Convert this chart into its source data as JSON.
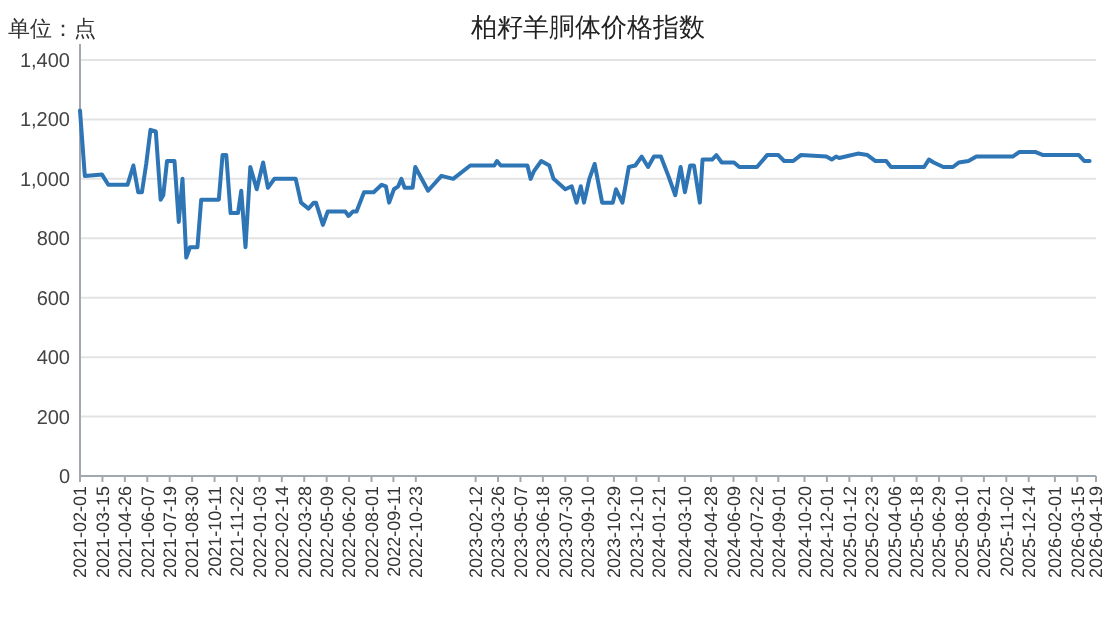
{
  "chart_data": {
    "type": "line",
    "title": "柏籽羊胴体价格指数",
    "ylabel": "单位：点",
    "xlim": [
      "2021-02-01",
      "2026-04-19"
    ],
    "xticks": [
      "2021-02-01",
      "2021-03-15",
      "2021-04-26",
      "2021-06-07",
      "2021-07-19",
      "2021-08-30",
      "2021-10-11",
      "2021-11-22",
      "2022-01-03",
      "2022-02-14",
      "2022-03-28",
      "2022-05-09",
      "2022-06-20",
      "2022-08-01",
      "2022-09-11",
      "2022-10-23",
      "2023-02-12",
      "2023-03-26",
      "2023-05-07",
      "2023-06-18",
      "2023-07-30",
      "2023-09-10",
      "2023-10-29",
      "2023-12-10",
      "2024-01-21",
      "2024-03-10",
      "2024-04-28",
      "2024-06-09",
      "2024-07-22",
      "2024-09-01",
      "2024-10-20",
      "2024-12-01",
      "2025-01-12",
      "2025-02-23",
      "2025-04-06",
      "2025-05-18",
      "2025-06-29",
      "2025-08-10",
      "2025-09-21",
      "2025-11-02",
      "2025-12-14",
      "2026-02-01",
      "2026-03-15",
      "2026-04-19"
    ],
    "ylim": [
      0,
      1400
    ],
    "yticks": [
      0,
      200,
      400,
      600,
      800,
      {
        "value": 1000,
        "label": "1,000"
      },
      {
        "value": 1200,
        "label": "1,200"
      },
      {
        "value": 1400,
        "label": "1,400"
      }
    ],
    "grid": "y",
    "series": [
      {
        "color": "#2e75b6",
        "x": [
          "2021-02-01",
          "2021-02-10",
          "2021-03-14",
          "2021-03-26",
          "2021-05-01",
          "2021-05-12",
          "2021-05-21",
          "2021-05-28",
          "2021-06-05",
          "2021-06-13",
          "2021-06-23",
          "2021-07-02",
          "2021-07-07",
          "2021-07-14",
          "2021-07-28",
          "2021-08-05",
          "2021-08-12",
          "2021-08-19",
          "2021-08-26",
          "2021-09-09",
          "2021-09-16",
          "2021-10-19",
          "2021-10-26",
          "2021-11-02",
          "2021-11-10",
          "2021-11-24",
          "2021-11-30",
          "2021-12-08",
          "2021-12-17",
          "2021-12-29",
          "2022-01-10",
          "2022-01-19",
          "2022-01-31",
          "2022-03-12",
          "2022-03-22",
          "2022-04-05",
          "2022-04-15",
          "2022-04-19",
          "2022-05-02",
          "2022-05-11",
          "2022-06-13",
          "2022-06-19",
          "2022-06-27",
          "2022-07-04",
          "2022-07-18",
          "2022-08-05",
          "2022-08-20",
          "2022-08-28",
          "2022-09-03",
          "2022-09-12",
          "2022-09-20",
          "2022-09-26",
          "2022-10-02",
          "2022-10-17",
          "2022-10-22",
          "2022-11-15",
          "2022-12-10",
          "2023-01-01",
          "2023-02-02",
          "2023-03-19",
          "2023-03-24",
          "2023-03-31",
          "2023-05-20",
          "2023-05-26",
          "2023-06-01",
          "2023-06-15",
          "2023-06-30",
          "2023-07-08",
          "2023-07-30",
          "2023-08-11",
          "2023-08-20",
          "2023-08-28",
          "2023-09-03",
          "2023-09-13",
          "2023-09-23",
          "2023-10-07",
          "2023-10-27",
          "2023-11-02",
          "2023-11-14",
          "2023-11-26",
          "2023-12-08",
          "2023-12-20",
          "2024-01-01",
          "2024-01-12",
          "2024-01-25",
          "2024-02-08",
          "2024-02-21",
          "2024-03-02",
          "2024-03-10",
          "2024-03-20",
          "2024-03-27",
          "2024-04-07",
          "2024-04-12",
          "2024-04-30",
          "2024-05-08",
          "2024-05-18",
          "2024-06-10",
          "2024-06-20",
          "2024-07-23",
          "2024-08-11",
          "2024-09-01",
          "2024-09-12",
          "2024-09-29",
          "2024-10-13",
          "2024-11-30",
          "2024-12-10",
          "2024-12-18",
          "2024-12-24",
          "2025-01-05",
          "2025-01-28",
          "2025-02-15",
          "2025-03-02",
          "2025-03-22",
          "2025-03-31",
          "2025-06-01",
          "2025-06-10",
          "2025-06-19",
          "2025-07-07",
          "2025-07-25",
          "2025-08-05",
          "2025-08-23",
          "2025-09-07",
          "2025-11-14",
          "2025-11-26",
          "2025-12-27",
          "2026-01-10",
          "2026-03-18",
          "2026-03-28",
          "2026-04-07"
        ],
        "values": [
          1230,
          1010,
          1015,
          980,
          980,
          1045,
          955,
          955,
          1050,
          1165,
          1160,
          930,
          945,
          1060,
          1060,
          855,
          1000,
          735,
          770,
          770,
          930,
          930,
          1080,
          1080,
          885,
          885,
          960,
          770,
          1040,
          965,
          1055,
          970,
          1000,
          1000,
          920,
          900,
          920,
          920,
          845,
          890,
          890,
          875,
          890,
          890,
          955,
          955,
          980,
          975,
          920,
          965,
          975,
          1000,
          970,
          970,
          1040,
          960,
          1010,
          1000,
          1045,
          1045,
          1060,
          1045,
          1045,
          1000,
          1025,
          1060,
          1045,
          1000,
          965,
          975,
          920,
          975,
          920,
          1000,
          1050,
          920,
          920,
          965,
          920,
          1040,
          1045,
          1075,
          1040,
          1075,
          1075,
          1010,
          945,
          1040,
          955,
          1045,
          1045,
          920,
          1065,
          1065,
          1080,
          1055,
          1055,
          1040,
          1040,
          1080,
          1080,
          1060,
          1060,
          1080,
          1075,
          1065,
          1075,
          1070,
          1075,
          1085,
          1080,
          1060,
          1060,
          1040,
          1040,
          1065,
          1055,
          1040,
          1040,
          1055,
          1060,
          1075,
          1075,
          1090,
          1090,
          1080,
          1080,
          1060,
          1060
        ]
      }
    ]
  }
}
